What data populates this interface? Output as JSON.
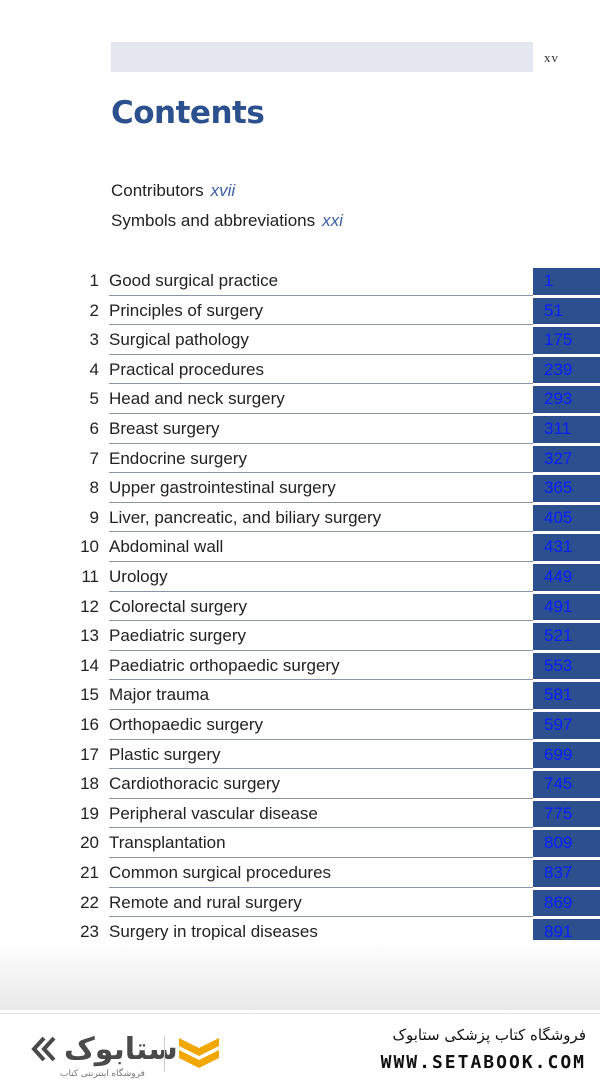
{
  "header": {
    "page_number": "xv"
  },
  "title": "Contents",
  "front_matter": [
    {
      "label": "Contributors",
      "page": "xvii"
    },
    {
      "label": "Symbols and abbreviations",
      "page": "xxi"
    }
  ],
  "chapters": [
    {
      "num": "1",
      "title": "Good surgical practice",
      "page": "1"
    },
    {
      "num": "2",
      "title": "Principles of surgery",
      "page": "51"
    },
    {
      "num": "3",
      "title": "Surgical pathology",
      "page": "175"
    },
    {
      "num": "4",
      "title": "Practical procedures",
      "page": "239"
    },
    {
      "num": "5",
      "title": "Head and neck surgery",
      "page": "293"
    },
    {
      "num": "6",
      "title": "Breast surgery",
      "page": "311"
    },
    {
      "num": "7",
      "title": "Endocrine surgery",
      "page": "327"
    },
    {
      "num": "8",
      "title": "Upper gastrointestinal surgery",
      "page": "365"
    },
    {
      "num": "9",
      "title": "Liver, pancreatic, and biliary surgery",
      "page": "405"
    },
    {
      "num": "10",
      "title": "Abdominal wall",
      "page": "431"
    },
    {
      "num": "11",
      "title": "Urology",
      "page": "449"
    },
    {
      "num": "12",
      "title": "Colorectal surgery",
      "page": "491"
    },
    {
      "num": "13",
      "title": "Paediatric surgery",
      "page": "521"
    },
    {
      "num": "14",
      "title": "Paediatric orthopaedic surgery",
      "page": "553"
    },
    {
      "num": "15",
      "title": "Major trauma",
      "page": "581"
    },
    {
      "num": "16",
      "title": "Orthopaedic surgery",
      "page": "597"
    },
    {
      "num": "17",
      "title": "Plastic surgery",
      "page": "699"
    },
    {
      "num": "18",
      "title": "Cardiothoracic surgery",
      "page": "745"
    },
    {
      "num": "19",
      "title": "Peripheral vascular disease",
      "page": "775"
    },
    {
      "num": "20",
      "title": "Transplantation",
      "page": "809"
    },
    {
      "num": "21",
      "title": "Common surgical procedures",
      "page": "837"
    },
    {
      "num": "22",
      "title": "Remote and rural surgery",
      "page": "869"
    },
    {
      "num": "23",
      "title": "Surgery in tropical diseases",
      "page": "891"
    }
  ],
  "footer": {
    "logo_text": "ستابوک",
    "logo_subtitle": "فروشگاه اینترنتی کتاب",
    "shop_name": "فروشگاه کتاب پزشکی ستابوک",
    "url": "WWW.SETABOOK.COM"
  },
  "colors": {
    "accent": "#2c4f8d",
    "page_link": "#0b1fff",
    "header_bar": "#e4e7f0"
  }
}
